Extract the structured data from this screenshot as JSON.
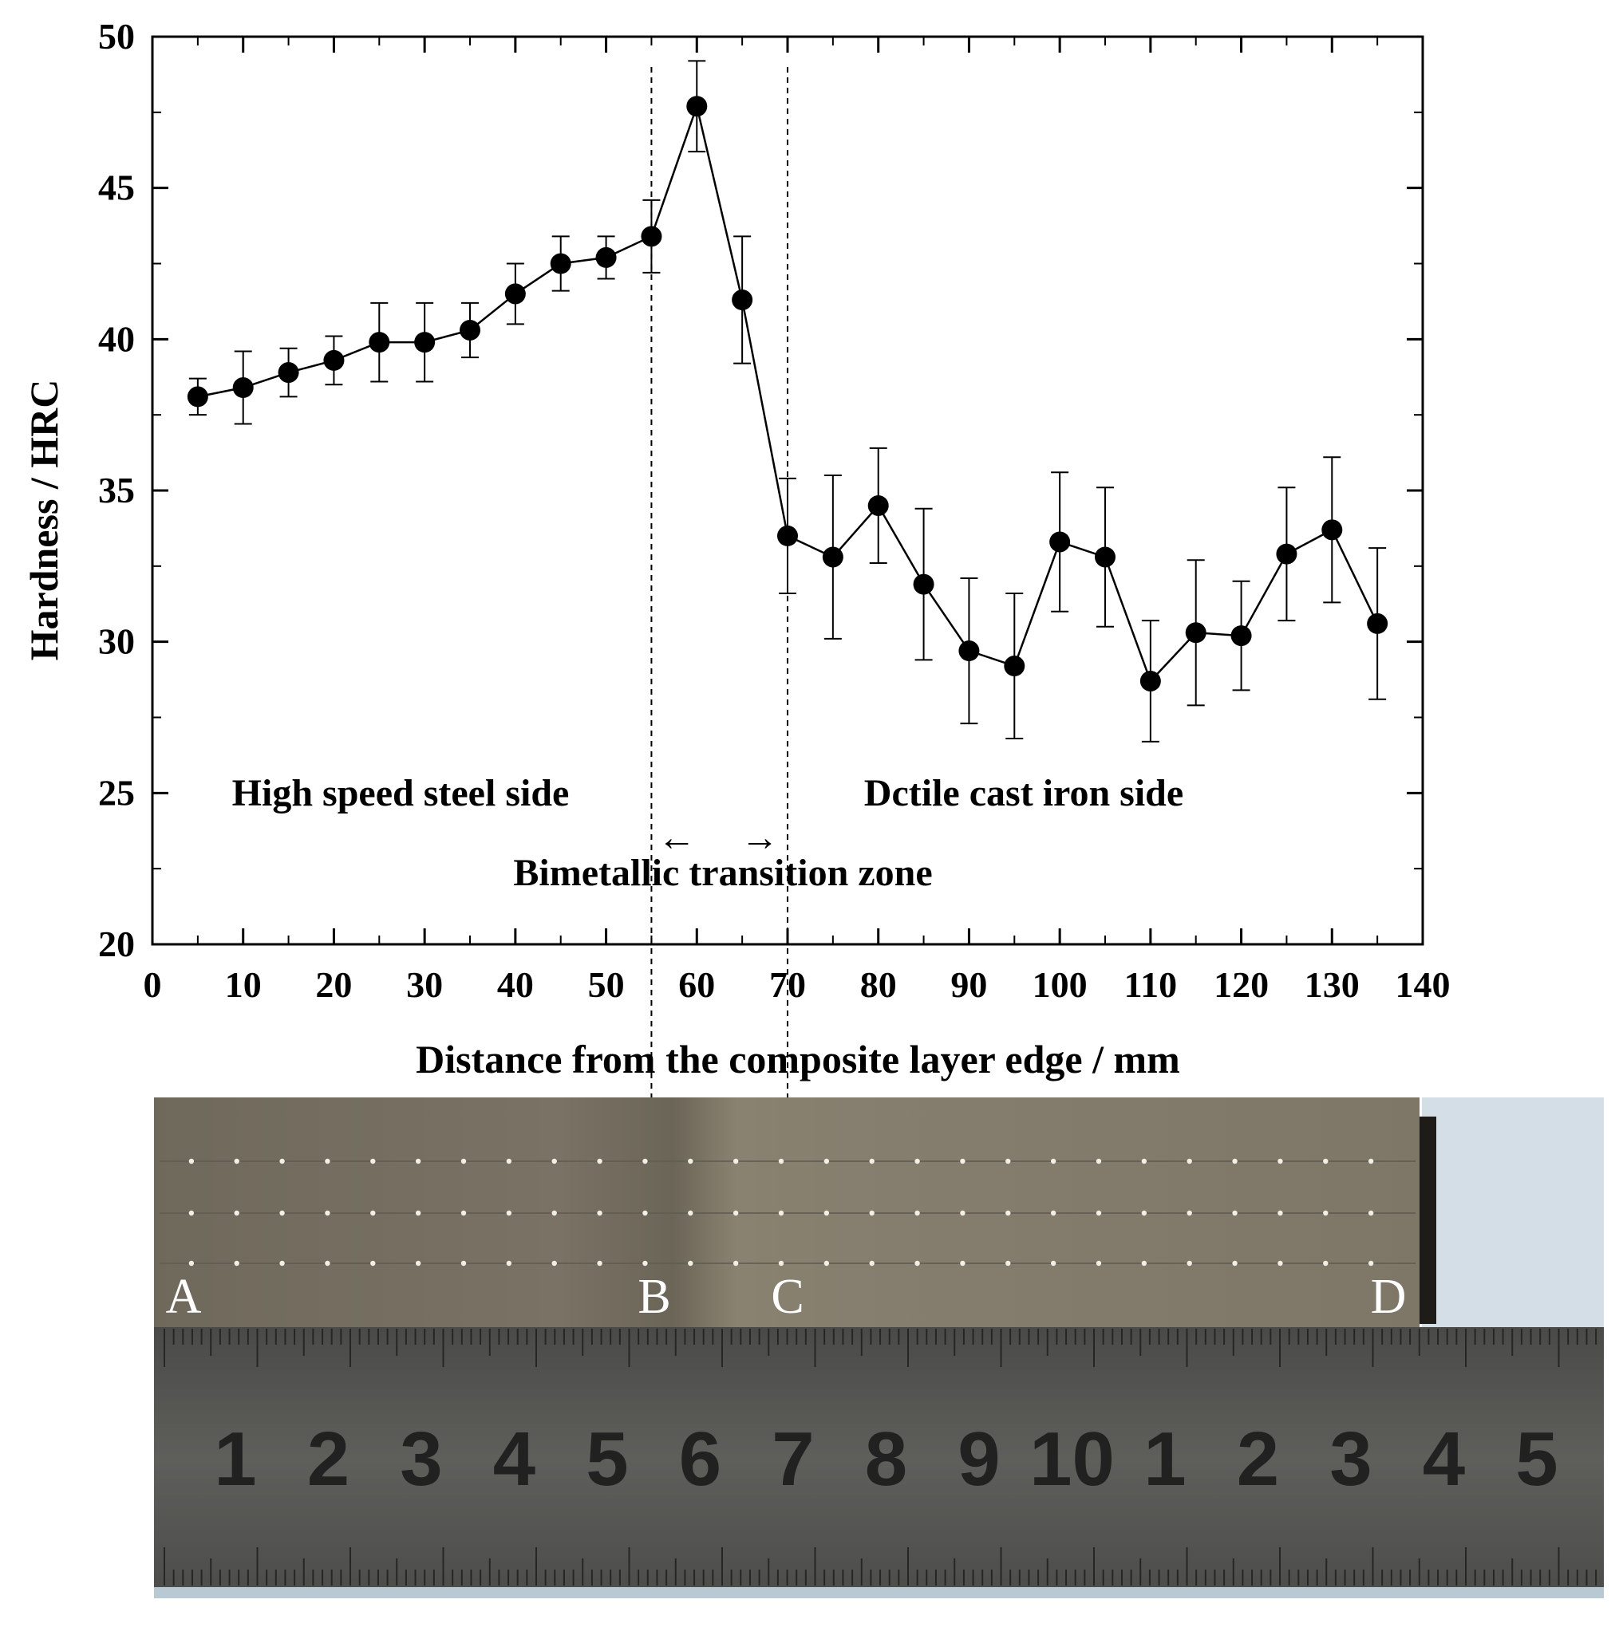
{
  "chart_data": {
    "type": "line",
    "xlabel": "Distance from the composite layer edge / mm",
    "ylabel": "Hardness / HRC",
    "xlim": [
      0,
      140
    ],
    "ylim": [
      20,
      50
    ],
    "xticks": [
      "0",
      "10",
      "20",
      "30",
      "40",
      "50",
      "60",
      "70",
      "80",
      "90",
      "100",
      "110",
      "120",
      "130",
      "140"
    ],
    "yticks": [
      "20",
      "25",
      "30",
      "35",
      "40",
      "45",
      "50"
    ],
    "grid": false,
    "series": [
      {
        "x": [
          5,
          10,
          15,
          20,
          25,
          30,
          35,
          40,
          45,
          50,
          55,
          60,
          65,
          70,
          75,
          80,
          85,
          90,
          95,
          100,
          105,
          110,
          115,
          120,
          125,
          130,
          135
        ],
        "y": [
          38.1,
          38.4,
          38.9,
          39.3,
          39.9,
          39.9,
          40.3,
          41.5,
          42.5,
          42.7,
          43.4,
          47.7,
          41.3,
          33.5,
          32.8,
          34.5,
          31.9,
          29.7,
          29.2,
          33.3,
          32.8,
          28.7,
          30.3,
          30.2,
          32.9,
          33.7,
          30.6
        ],
        "error": [
          0.6,
          1.2,
          0.8,
          0.8,
          1.3,
          1.3,
          0.9,
          1.0,
          0.9,
          0.7,
          1.2,
          1.5,
          2.1,
          1.9,
          2.7,
          1.9,
          2.5,
          2.4,
          2.4,
          2.3,
          2.3,
          2.0,
          2.4,
          1.8,
          2.2,
          2.4,
          2.5
        ]
      }
    ],
    "vlines": [
      55,
      70
    ],
    "annotations": {
      "left_side": "High speed steel side",
      "right_side": "Dctile cast iron side",
      "zone": "Bimetallic transition zone",
      "arrow_left": "←",
      "arrow_right": "→"
    }
  },
  "photo": {
    "letters": [
      "A",
      "B",
      "C",
      "D"
    ],
    "ruler_numbers": [
      "1",
      "2",
      "3",
      "4",
      "5",
      "6",
      "7",
      "8",
      "9",
      "10",
      "1",
      "2",
      "3",
      "4",
      "5"
    ],
    "ruler_highlight_color": "#a3281f",
    "sample_color": "#7b7466",
    "ruler_color": "#5a5a58",
    "backdrop_color": "#d4dee6"
  }
}
